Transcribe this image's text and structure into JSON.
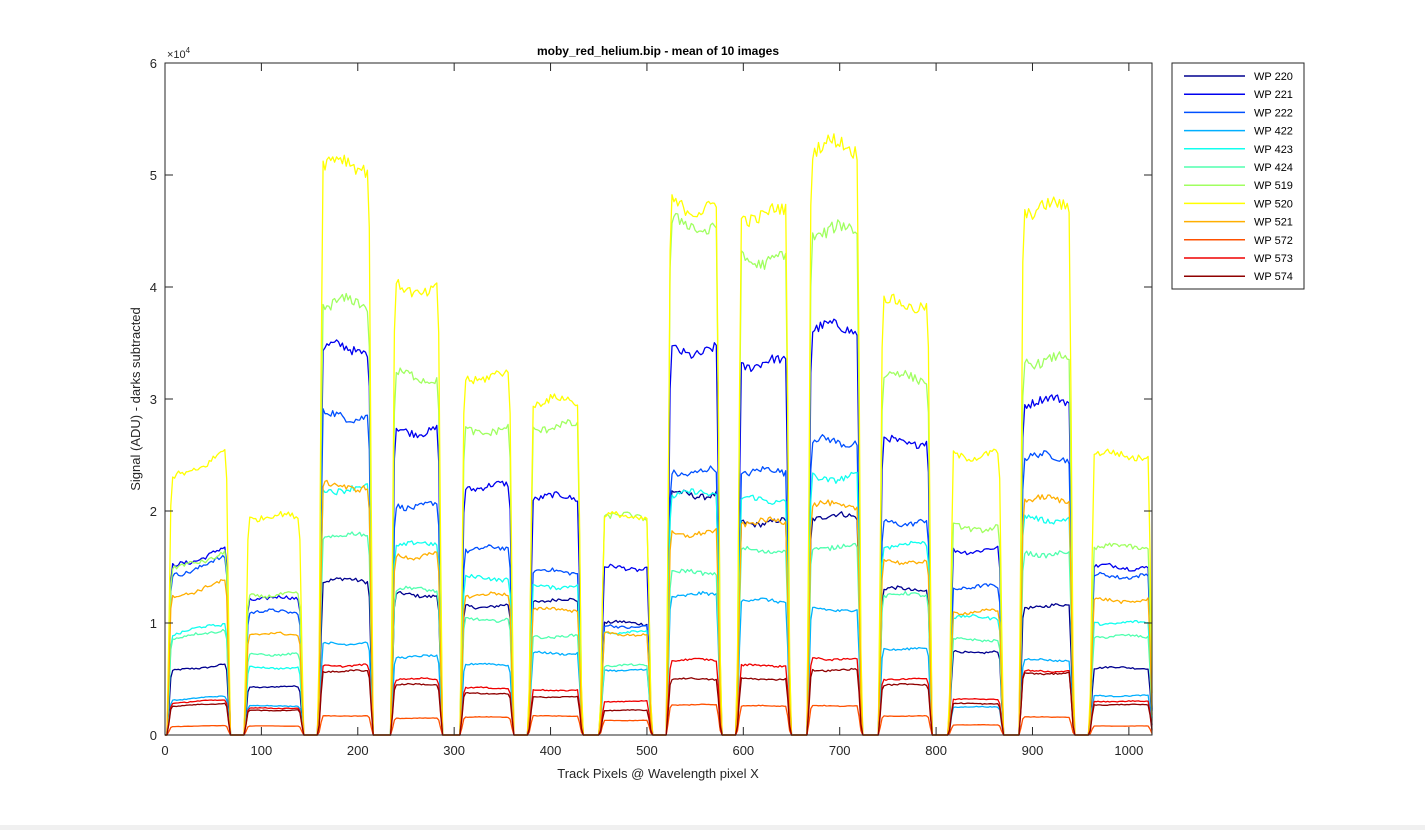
{
  "window": {
    "background": "#ffffff"
  },
  "chart_data": {
    "type": "line",
    "title": "moby_red_helium.bip - mean of 10 images",
    "xlabel": "Track Pixels @ Wavelength pixel X",
    "ylabel": "Signal (ADU) - darks subtracted",
    "exponent_label": "×10",
    "exponent_power": "4",
    "xlim": [
      0,
      1024
    ],
    "ylim": [
      0,
      6
    ],
    "x_ticks": [
      0,
      100,
      200,
      300,
      400,
      500,
      600,
      700,
      800,
      900,
      1000
    ],
    "x_tick_labels": [
      "0",
      "100",
      "200",
      "300",
      "400",
      "500",
      "600",
      "700",
      "800",
      "900",
      "1000"
    ],
    "y_ticks": [
      0,
      1,
      2,
      3,
      4,
      5,
      6
    ],
    "y_tick_labels": [
      "0",
      "1",
      "2",
      "3",
      "4",
      "5",
      "6"
    ],
    "y_scale_note": "values in units of 10^4 ADU",
    "legend_position": "outside-top-right",
    "grid": false,
    "tracks": [
      [
        3,
        67
      ],
      [
        83,
        143
      ],
      [
        160,
        215
      ],
      [
        235,
        287
      ],
      [
        307,
        361
      ],
      [
        378,
        432
      ],
      [
        452,
        504
      ],
      [
        521,
        576
      ],
      [
        594,
        648
      ],
      [
        667,
        722
      ],
      [
        741,
        795
      ],
      [
        814,
        869
      ],
      [
        887,
        942
      ],
      [
        960,
        1024
      ]
    ],
    "series": [
      {
        "name": "WP 220",
        "color": "#00008f",
        "values": [
          0.6,
          0.43,
          1.38,
          1.25,
          1.15,
          1.2,
          1.0,
          2.15,
          1.9,
          1.95,
          1.3,
          0.74,
          1.15,
          0.6
        ]
      },
      {
        "name": "WP 221",
        "color": "#0000ef",
        "values": [
          1.58,
          1.22,
          3.45,
          2.72,
          2.22,
          2.12,
          1.49,
          3.43,
          3.32,
          3.63,
          2.62,
          1.65,
          2.98,
          1.5
        ]
      },
      {
        "name": "WP 222",
        "color": "#0050ff",
        "values": [
          1.5,
          1.1,
          2.85,
          2.05,
          1.66,
          1.46,
          0.97,
          2.35,
          2.35,
          2.62,
          1.9,
          1.32,
          2.48,
          1.42
        ]
      },
      {
        "name": "WP 422",
        "color": "#00afff",
        "values": [
          0.33,
          0.26,
          0.82,
          0.7,
          0.63,
          0.73,
          0.58,
          1.25,
          1.2,
          1.12,
          0.77,
          0.25,
          0.67,
          0.35
        ]
      },
      {
        "name": "WP 423",
        "color": "#10ffef",
        "values": [
          0.95,
          0.6,
          2.2,
          1.7,
          1.4,
          1.33,
          0.92,
          2.15,
          2.1,
          2.3,
          1.7,
          1.05,
          1.93,
          1.0
        ]
      },
      {
        "name": "WP 424",
        "color": "#50ffaf",
        "values": [
          0.9,
          0.72,
          1.78,
          1.3,
          1.03,
          0.88,
          0.62,
          1.45,
          1.65,
          1.68,
          1.25,
          0.85,
          1.62,
          0.88
        ]
      },
      {
        "name": "WP 519",
        "color": "#a0ff60",
        "values": [
          1.55,
          1.25,
          3.85,
          3.2,
          2.72,
          2.75,
          1.95,
          4.55,
          4.25,
          4.5,
          3.2,
          1.85,
          3.35,
          1.68
        ]
      },
      {
        "name": "WP 520",
        "color": "#ffff00",
        "values": [
          2.4,
          1.95,
          5.1,
          3.98,
          3.2,
          2.98,
          1.95,
          4.72,
          4.65,
          5.25,
          3.85,
          2.5,
          4.7,
          2.5
        ]
      },
      {
        "name": "WP 521",
        "color": "#ffaf00",
        "values": [
          1.3,
          0.9,
          2.22,
          1.6,
          1.25,
          1.12,
          0.9,
          1.8,
          1.9,
          2.05,
          1.55,
          1.1,
          2.1,
          1.2
        ]
      },
      {
        "name": "WP 572",
        "color": "#ff5000",
        "values": [
          0.08,
          0.08,
          0.17,
          0.15,
          0.16,
          0.17,
          0.13,
          0.27,
          0.26,
          0.26,
          0.17,
          0.09,
          0.16,
          0.08
        ]
      },
      {
        "name": "WP 573",
        "color": "#ef0000",
        "values": [
          0.3,
          0.24,
          0.62,
          0.5,
          0.42,
          0.4,
          0.3,
          0.67,
          0.62,
          0.68,
          0.5,
          0.32,
          0.57,
          0.3
        ]
      },
      {
        "name": "WP 574",
        "color": "#8f0000",
        "values": [
          0.27,
          0.22,
          0.57,
          0.45,
          0.37,
          0.34,
          0.22,
          0.5,
          0.5,
          0.58,
          0.45,
          0.28,
          0.55,
          0.27
        ]
      }
    ]
  }
}
